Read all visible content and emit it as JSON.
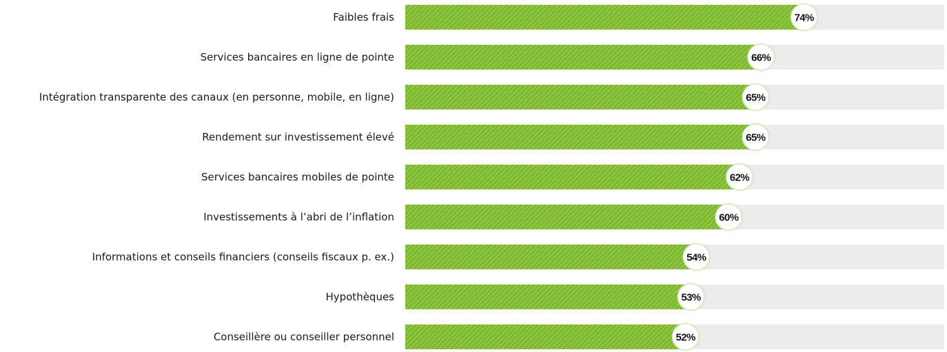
{
  "chart_data": {
    "type": "bar",
    "orientation": "horizontal",
    "categories": [
      "Faibles frais",
      "Services bancaires en ligne de pointe",
      "Intégration transparente des canaux (en personne, mobile, en ligne)",
      "Rendement sur investissement élevé",
      "Services bancaires mobiles de pointe",
      "Investissements à l’abri de l’inflation",
      "Informations et conseils financiers (conseils fiscaux p. ex.)",
      "Hypothèques",
      "Conseillère ou conseiller personnel"
    ],
    "values": [
      74,
      66,
      65,
      65,
      62,
      60,
      54,
      53,
      52
    ],
    "value_labels": [
      "74%",
      "66%",
      "65%",
      "65%",
      "62%",
      "60%",
      "54%",
      "53%",
      "52%"
    ],
    "xlim": [
      0,
      100
    ],
    "grid": false,
    "legend": "none",
    "colors": {
      "bar": "#8cc63e",
      "bar_hatch": "#6aa32a",
      "track": "#ececec",
      "bubble_fill": "#ffffff",
      "bubble_stroke": "#dcebc8"
    }
  }
}
